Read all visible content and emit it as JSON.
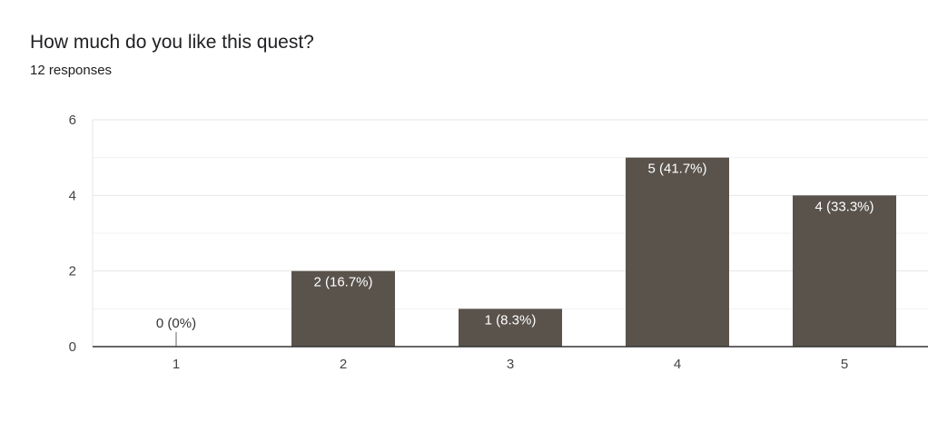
{
  "question": {
    "title": "How much do you like this quest?",
    "responses": "12 responses"
  },
  "chart_data": {
    "type": "bar",
    "title": "How much do you like this quest?",
    "categories": [
      "1",
      "2",
      "3",
      "4",
      "5"
    ],
    "values": [
      0,
      2,
      1,
      5,
      4
    ],
    "data_labels": [
      "0 (0%)",
      "2 (16.7%)",
      "1 (8.3%)",
      "5 (41.7%)",
      "4 (33.3%)"
    ],
    "yticks": [
      0,
      2,
      4,
      6
    ],
    "ylim": [
      0,
      6
    ],
    "grid": true,
    "legend": "none",
    "bar_color": "#59534c",
    "label_color_on_bar": "#ffffff",
    "label_color_outside": "#333333"
  }
}
